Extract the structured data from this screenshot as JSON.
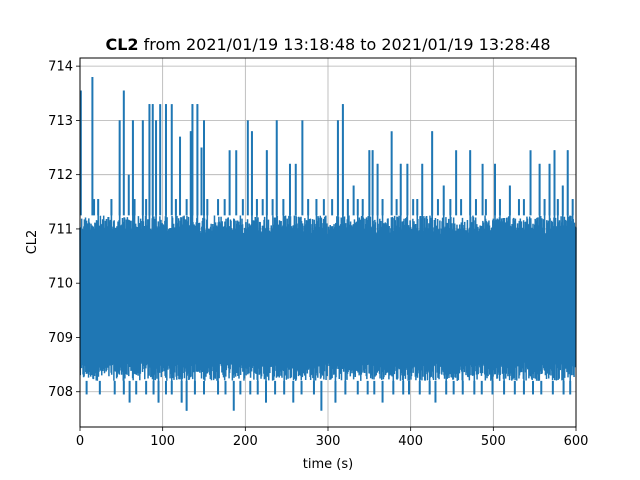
{
  "chart_data": {
    "type": "line",
    "title_bold": "CL2",
    "title_rest": " from 2021/01/19 13:18:48 to 2021/01/19 13:28:48",
    "xlabel": "time (s)",
    "ylabel": "CL2",
    "xlim": [
      0,
      600
    ],
    "ylim": [
      707.35,
      714.15
    ],
    "xticks": [
      0,
      100,
      200,
      300,
      400,
      500,
      600
    ],
    "yticks": [
      708,
      709,
      710,
      711,
      712,
      713,
      714
    ],
    "grid": true,
    "color": "#1f77b4",
    "series": [
      {
        "values_summary": {
          "baseline_low": 708.2,
          "baseline_high": 711.25,
          "min": 707.65,
          "max": 713.8
        },
        "spikes_high": [
          [
            1,
            713.55
          ],
          [
            15,
            713.8
          ],
          [
            17,
            711.55
          ],
          [
            22,
            711.55
          ],
          [
            38,
            711.55
          ],
          [
            48,
            713.0
          ],
          [
            53,
            713.55
          ],
          [
            59,
            712.0
          ],
          [
            64,
            713.0
          ],
          [
            66,
            711.55
          ],
          [
            76,
            713.0
          ],
          [
            80,
            711.55
          ],
          [
            84,
            713.3
          ],
          [
            88,
            713.3
          ],
          [
            92,
            713.0
          ],
          [
            97,
            713.3
          ],
          [
            104,
            713.3
          ],
          [
            111,
            713.3
          ],
          [
            116,
            711.55
          ],
          [
            121,
            712.7
          ],
          [
            129,
            711.55
          ],
          [
            134,
            712.8
          ],
          [
            136,
            713.3
          ],
          [
            142,
            713.3
          ],
          [
            147,
            712.5
          ],
          [
            150,
            713.0
          ],
          [
            154,
            711.55
          ],
          [
            167,
            711.55
          ],
          [
            175,
            711.55
          ],
          [
            181,
            712.45
          ],
          [
            189,
            712.45
          ],
          [
            197,
            711.55
          ],
          [
            203,
            713.0
          ],
          [
            208,
            712.8
          ],
          [
            214,
            711.55
          ],
          [
            221,
            711.55
          ],
          [
            226,
            712.45
          ],
          [
            233,
            711.55
          ],
          [
            238,
            713.0
          ],
          [
            246,
            711.55
          ],
          [
            254,
            712.2
          ],
          [
            261,
            712.2
          ],
          [
            269,
            713.0
          ],
          [
            276,
            711.55
          ],
          [
            286,
            711.55
          ],
          [
            295,
            711.55
          ],
          [
            305,
            711.55
          ],
          [
            312,
            713.0
          ],
          [
            318,
            713.3
          ],
          [
            324,
            711.55
          ],
          [
            331,
            711.8
          ],
          [
            336,
            711.55
          ],
          [
            342,
            711.55
          ],
          [
            350,
            712.45
          ],
          [
            354,
            712.45
          ],
          [
            360,
            712.2
          ],
          [
            366,
            711.55
          ],
          [
            377,
            712.8
          ],
          [
            383,
            711.55
          ],
          [
            388,
            712.2
          ],
          [
            396,
            712.2
          ],
          [
            403,
            711.55
          ],
          [
            408,
            711.55
          ],
          [
            414,
            712.2
          ],
          [
            426,
            712.8
          ],
          [
            433,
            711.55
          ],
          [
            440,
            711.8
          ],
          [
            448,
            711.55
          ],
          [
            455,
            712.45
          ],
          [
            461,
            711.55
          ],
          [
            472,
            712.45
          ],
          [
            479,
            711.55
          ],
          [
            487,
            712.2
          ],
          [
            491,
            711.55
          ],
          [
            502,
            712.2
          ],
          [
            508,
            711.55
          ],
          [
            520,
            711.8
          ],
          [
            531,
            711.55
          ],
          [
            537,
            711.55
          ],
          [
            545,
            712.45
          ],
          [
            556,
            712.2
          ],
          [
            562,
            711.55
          ],
          [
            568,
            712.2
          ],
          [
            574,
            712.45
          ],
          [
            578,
            711.55
          ],
          [
            584,
            711.8
          ],
          [
            590,
            712.45
          ],
          [
            596,
            711.55
          ]
        ],
        "spikes_low": [
          [
            8,
            707.95
          ],
          [
            24,
            707.95
          ],
          [
            42,
            707.95
          ],
          [
            53,
            707.95
          ],
          [
            60,
            707.8
          ],
          [
            68,
            707.95
          ],
          [
            80,
            707.95
          ],
          [
            89,
            707.95
          ],
          [
            95,
            707.8
          ],
          [
            104,
            707.95
          ],
          [
            111,
            707.95
          ],
          [
            123,
            707.8
          ],
          [
            129,
            707.65
          ],
          [
            139,
            707.95
          ],
          [
            150,
            707.95
          ],
          [
            167,
            707.95
          ],
          [
            176,
            707.95
          ],
          [
            186,
            707.65
          ],
          [
            194,
            707.95
          ],
          [
            206,
            707.95
          ],
          [
            215,
            707.95
          ],
          [
            225,
            707.8
          ],
          [
            236,
            707.95
          ],
          [
            247,
            707.95
          ],
          [
            258,
            707.8
          ],
          [
            268,
            707.95
          ],
          [
            283,
            707.95
          ],
          [
            292,
            707.65
          ],
          [
            309,
            707.8
          ],
          [
            321,
            707.95
          ],
          [
            336,
            707.95
          ],
          [
            348,
            707.95
          ],
          [
            356,
            707.95
          ],
          [
            366,
            707.8
          ],
          [
            379,
            707.95
          ],
          [
            391,
            707.95
          ],
          [
            398,
            707.95
          ],
          [
            411,
            707.95
          ],
          [
            423,
            707.95
          ],
          [
            430,
            707.8
          ],
          [
            443,
            707.95
          ],
          [
            452,
            707.95
          ],
          [
            463,
            707.95
          ],
          [
            477,
            707.95
          ],
          [
            486,
            707.95
          ],
          [
            499,
            707.95
          ],
          [
            513,
            707.95
          ],
          [
            526,
            707.95
          ],
          [
            537,
            707.95
          ],
          [
            548,
            707.95
          ],
          [
            558,
            707.95
          ],
          [
            572,
            707.95
          ],
          [
            585,
            707.95
          ],
          [
            593,
            707.95
          ]
        ]
      }
    ]
  }
}
